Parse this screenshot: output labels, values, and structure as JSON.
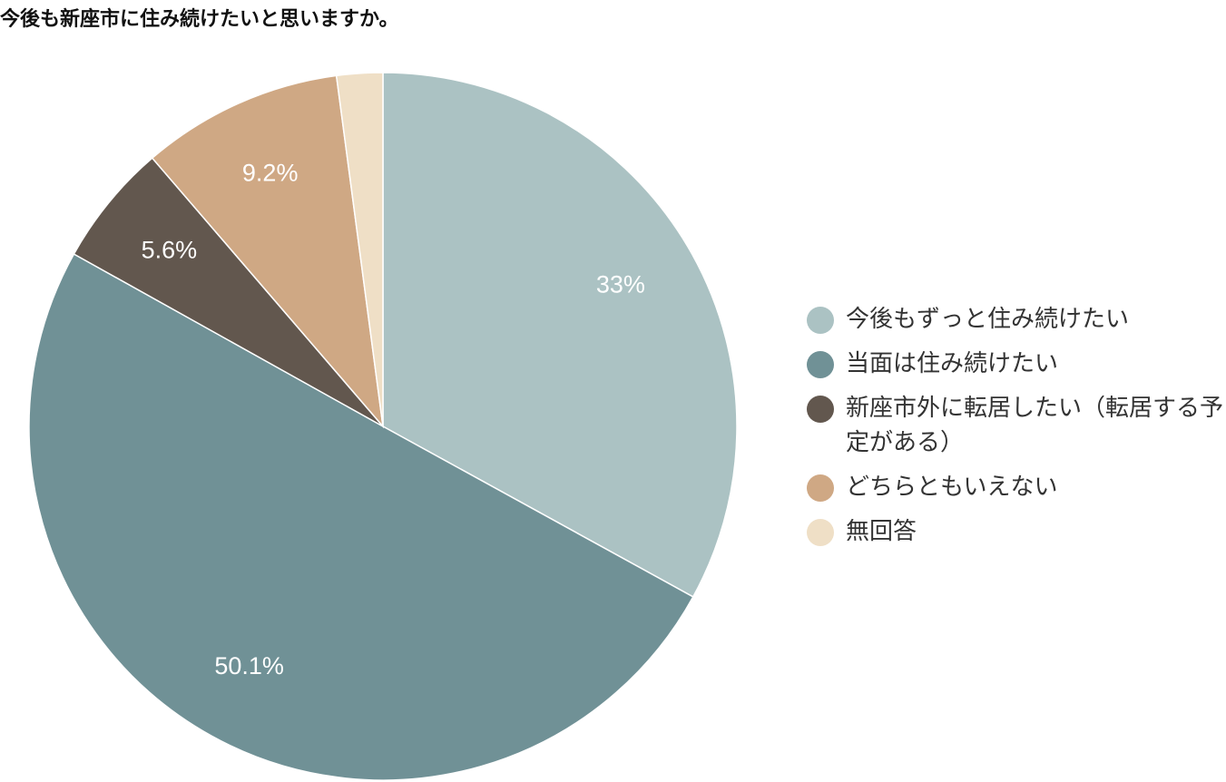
{
  "chart_data": {
    "type": "pie",
    "title": "今後も新座市に住み続けたいと思いますか。",
    "start_angle_deg": 0,
    "direction": "clockwise",
    "legend_position": "right",
    "slices": [
      {
        "label": "今後もずっと住み続けたい",
        "value": 33.0,
        "display": "33%",
        "color": "#abc2c3"
      },
      {
        "label": "当面は住み続けたい",
        "value": 50.1,
        "display": "50.1%",
        "color": "#709196"
      },
      {
        "label": "新座市外に転居したい（転居する予定がある）",
        "value": 5.6,
        "display": "5.6%",
        "color": "#62574e"
      },
      {
        "label": "どちらともいえない",
        "value": 9.2,
        "display": "9.2%",
        "color": "#cfa884"
      },
      {
        "label": "無回答",
        "value": 2.1,
        "display": "",
        "color": "#efdfc6"
      }
    ]
  }
}
